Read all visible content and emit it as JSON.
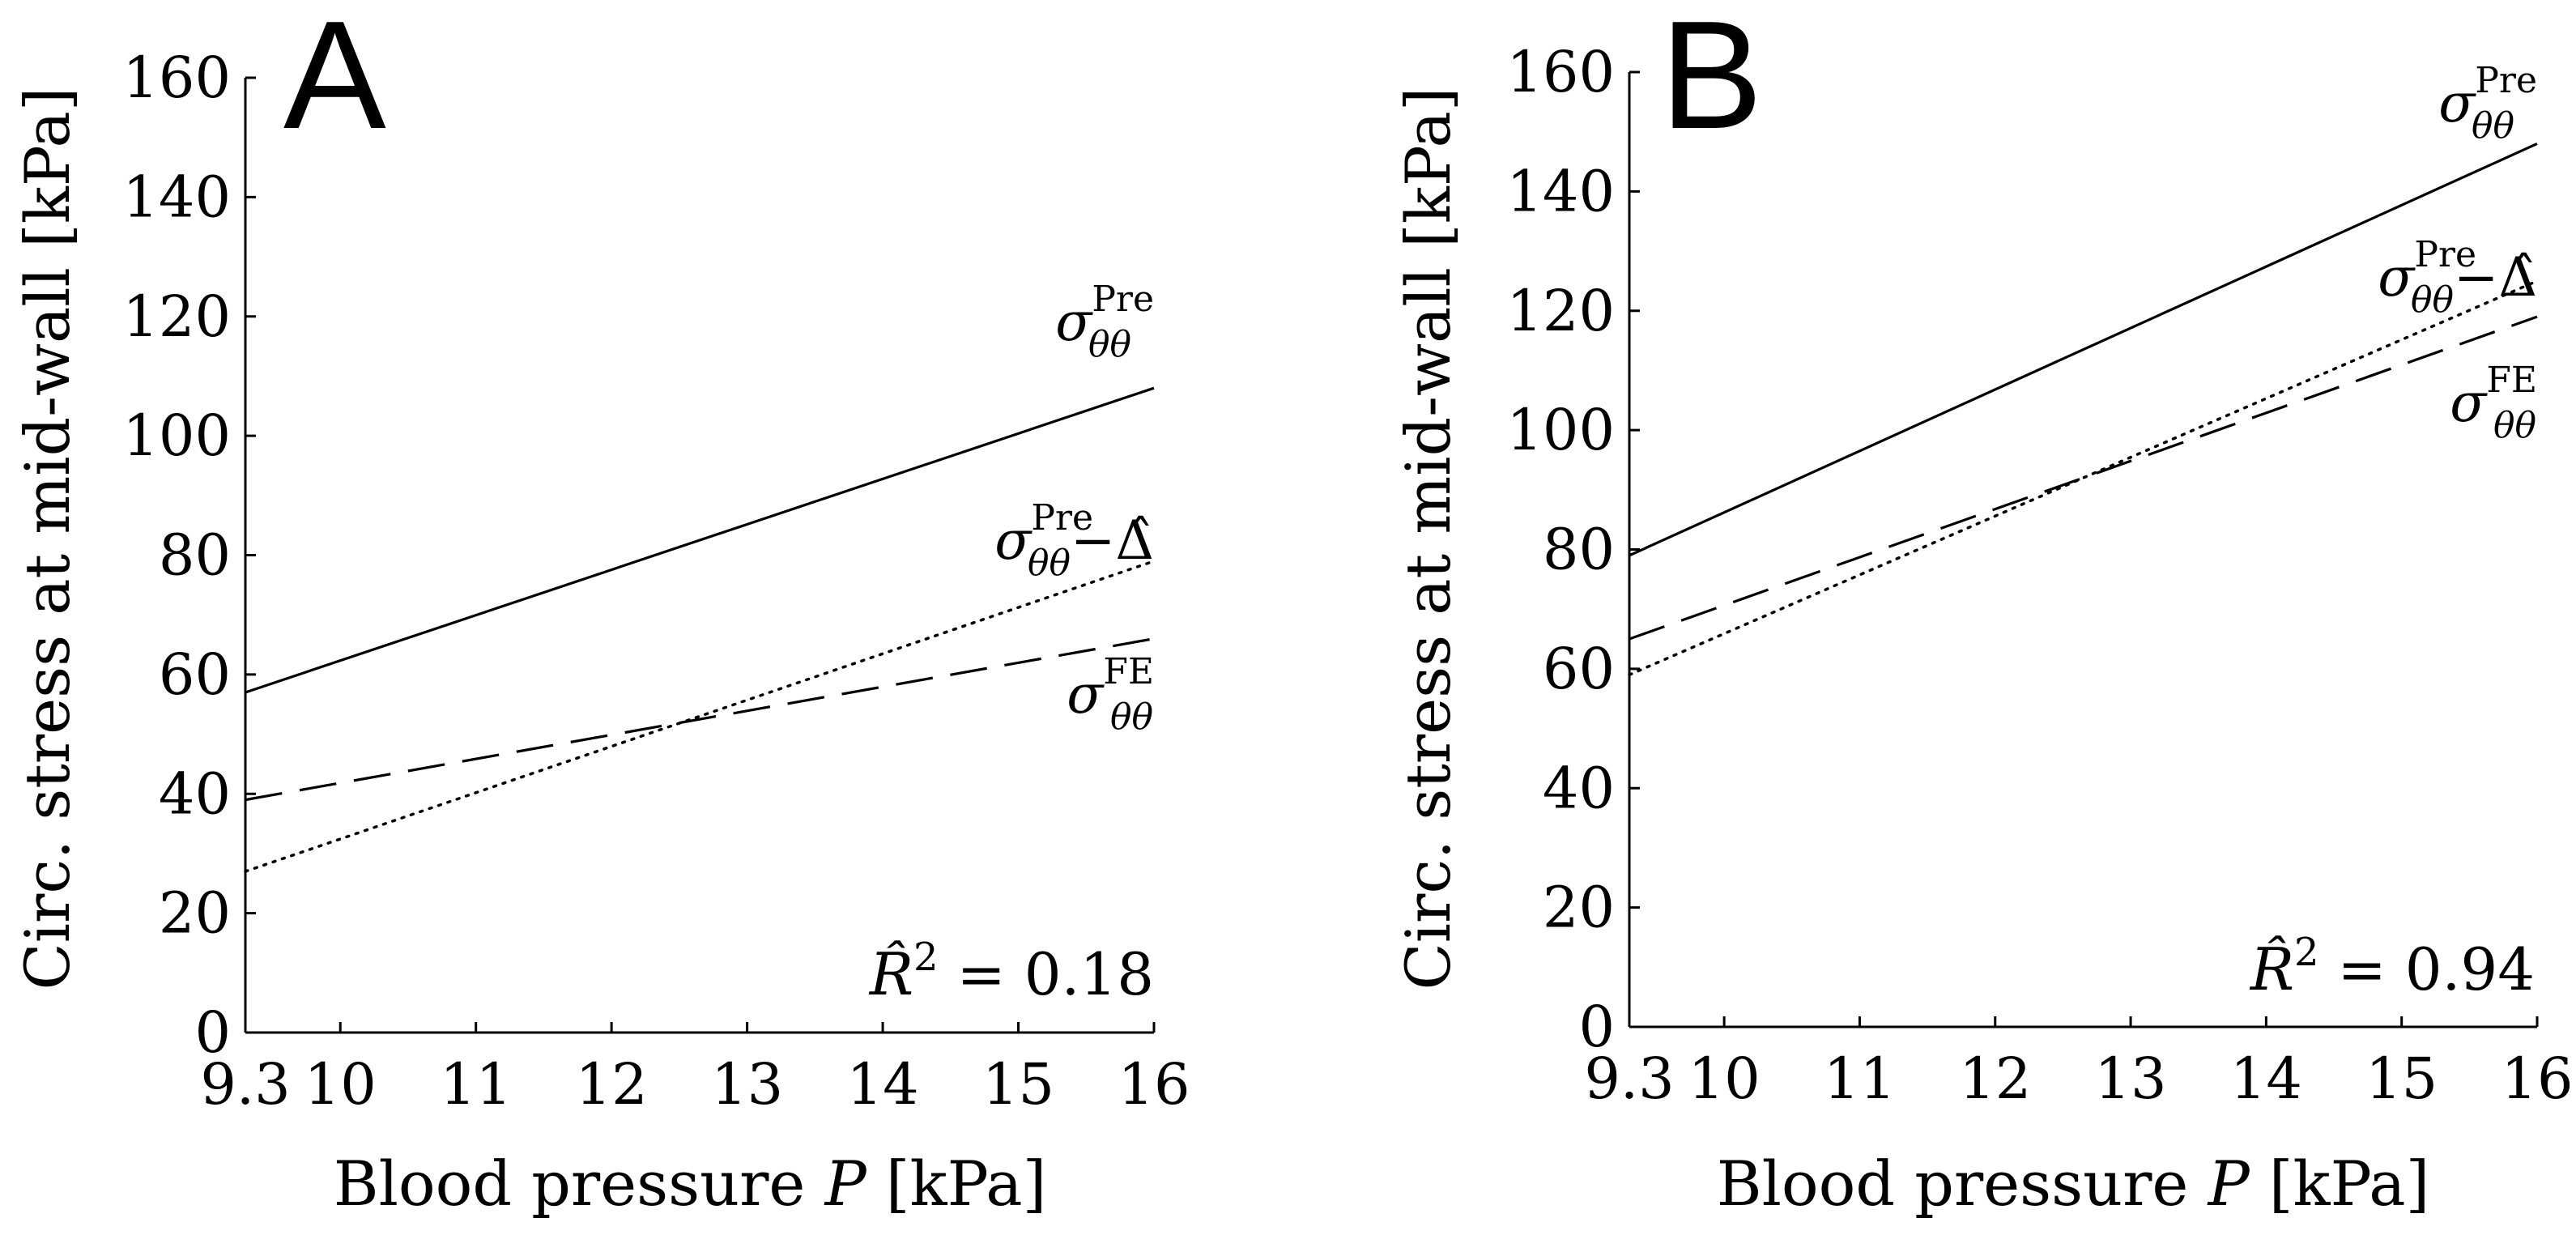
{
  "figure": {
    "xlabel_text": "Blood pressure ",
    "xlabel_var": "P",
    "xlabel_unit": " [kPa]",
    "ylabel": "Circ. stress at mid-wall [kPa]",
    "sigma": "σ",
    "theta_sub": "θθ",
    "minus_delta": "−Δ̂",
    "r2_symbol": "R̂",
    "r2_exponent": "2",
    "r2_eq": " = "
  },
  "chart_data": [
    {
      "type": "line",
      "panel": "A",
      "x_range": [
        9.3,
        16
      ],
      "ylim": [
        0,
        160
      ],
      "x_ticks": [
        "9.3",
        "10",
        "11",
        "12",
        "13",
        "14",
        "15",
        "16"
      ],
      "x_tick_values": [
        9.3,
        10,
        11,
        12,
        13,
        14,
        15,
        16
      ],
      "y_ticks": [
        "0",
        "20",
        "40",
        "60",
        "80",
        "100",
        "120",
        "140",
        "160"
      ],
      "y_tick_values": [
        0,
        20,
        40,
        60,
        80,
        100,
        120,
        140,
        160
      ],
      "series": [
        {
          "name": "σθθ^Pre",
          "style": "solid",
          "x": [
            9.3,
            16
          ],
          "values": [
            57,
            108
          ],
          "label_sup": "Pre",
          "label_minus": false
        },
        {
          "name": "σθθ^Pre − Δ̂",
          "style": "dotted",
          "x": [
            9.3,
            16
          ],
          "values": [
            27,
            79
          ],
          "label_sup": "Pre",
          "label_minus": true
        },
        {
          "name": "σθθ^FE",
          "style": "dashed",
          "x": [
            9.3,
            16
          ],
          "values": [
            39,
            66
          ],
          "label_sup": "FE",
          "label_minus": false
        }
      ],
      "r2_value": "0.18"
    },
    {
      "type": "line",
      "panel": "B",
      "x_range": [
        9.3,
        16
      ],
      "ylim": [
        0,
        160
      ],
      "x_ticks": [
        "9.3",
        "10",
        "11",
        "12",
        "13",
        "14",
        "15",
        "16"
      ],
      "x_tick_values": [
        9.3,
        10,
        11,
        12,
        13,
        14,
        15,
        16
      ],
      "y_ticks": [
        "0",
        "20",
        "40",
        "60",
        "80",
        "100",
        "120",
        "140",
        "160"
      ],
      "y_tick_values": [
        0,
        20,
        40,
        60,
        80,
        100,
        120,
        140,
        160
      ],
      "series": [
        {
          "name": "σθθ^Pre",
          "style": "solid",
          "x": [
            9.3,
            16
          ],
          "values": [
            79,
            148
          ],
          "label_sup": "Pre",
          "label_minus": false
        },
        {
          "name": "σθθ^Pre − Δ̂",
          "style": "dotted",
          "x": [
            9.3,
            16
          ],
          "values": [
            59,
            125
          ],
          "label_sup": "Pre",
          "label_minus": true
        },
        {
          "name": "σθθ^FE",
          "style": "dashed",
          "x": [
            9.3,
            16
          ],
          "values": [
            65,
            119
          ],
          "label_sup": "FE",
          "label_minus": false
        }
      ],
      "r2_value": "0.94"
    }
  ]
}
